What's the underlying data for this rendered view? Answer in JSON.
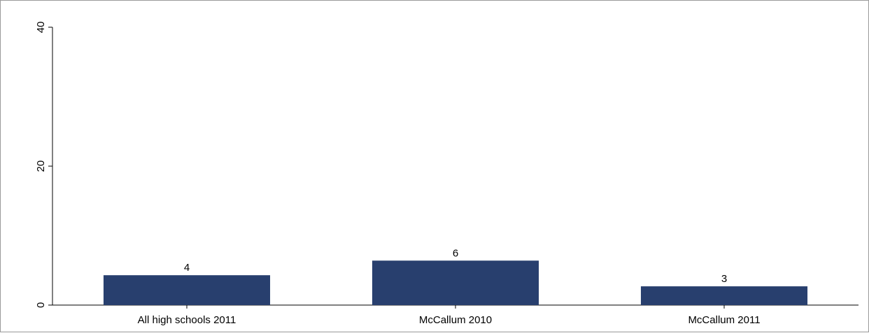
{
  "chart_data": {
    "type": "bar",
    "title": "",
    "xlabel": "",
    "ylabel": "",
    "categories": [
      "All high schools 2011",
      "McCallum 2010",
      "McCallum 2011"
    ],
    "values": [
      4.3,
      6.4,
      2.7
    ],
    "value_labels": [
      "4",
      "6",
      "3"
    ],
    "ylim": [
      0,
      40
    ],
    "yticks": [
      0,
      20,
      40
    ],
    "ytick_labels": [
      "0",
      "20",
      "40"
    ],
    "grid": false,
    "legend": "none",
    "bar_color": "#283f6e"
  }
}
